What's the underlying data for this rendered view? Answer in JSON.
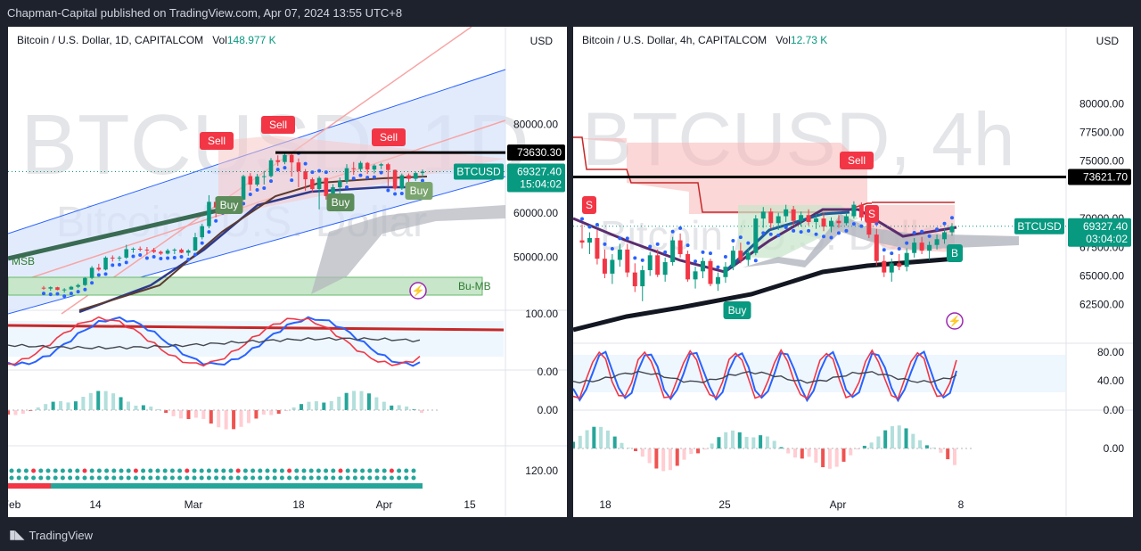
{
  "header": {
    "publisher": "Chapman-Capital published on TradingView.com, Apr 07, 2024 13:55 UTC+8"
  },
  "footer": {
    "brand": "TradingView"
  },
  "colors": {
    "up": "#089981",
    "down": "#f23645",
    "ichimoku_cloud": "#b2b5be",
    "channel_fill": "#d6e2fb",
    "support_fill": "#c8e6c9"
  },
  "chart_data": [
    {
      "type": "candlestick",
      "legend": {
        "symbol": "Bitcoin / U.S. Dollar, 1D, CAPITALCOM",
        "vol_label": "Vol",
        "vol_value": "148.977 K"
      },
      "watermark": "BTCUSD, 1D",
      "watermark_sub": "Bitcoin / U.S. Dollar",
      "currency": "USD",
      "price_ticks": [
        "80000.00",
        "60000.00",
        "50000.00"
      ],
      "price_ticks_values": [
        80000,
        60000,
        50000
      ],
      "ylim": [
        38000,
        94000
      ],
      "resistance": {
        "value": 73630.3,
        "label": "73630.30"
      },
      "last_price": {
        "symbol": "BTCUSD",
        "value": 69327.4,
        "label": "69327.40",
        "countdown": "15:04:02"
      },
      "oscillator_ticks": [
        "100.00",
        "0.00"
      ],
      "macd_ticks": [
        "0.00"
      ],
      "bottom_tick": "120.00",
      "x_ticks": [
        "Feb",
        "14",
        "Mar",
        "18",
        "Apr",
        "15"
      ],
      "annotations": [
        "Sell",
        "Sell",
        "Sell",
        "Buy",
        "Buy",
        "Buy",
        "Bu-MB",
        "MSB"
      ],
      "candles": [
        [
          43100,
          43500,
          42600,
          42900
        ],
        [
          42900,
          43400,
          42400,
          43200
        ],
        [
          43200,
          43300,
          42500,
          42600
        ],
        [
          42600,
          43000,
          42000,
          42700
        ],
        [
          42700,
          43500,
          42600,
          43300
        ],
        [
          43300,
          44000,
          43000,
          43700
        ],
        [
          43700,
          45500,
          43500,
          45300
        ],
        [
          45300,
          48000,
          45000,
          47600
        ],
        [
          47600,
          48500,
          46800,
          47200
        ],
        [
          47200,
          50200,
          47000,
          49900
        ],
        [
          49900,
          50400,
          49000,
          49700
        ],
        [
          49700,
          50300,
          49100,
          49900
        ],
        [
          49900,
          52800,
          49600,
          51800
        ],
        [
          51800,
          52200,
          51000,
          51900
        ],
        [
          51900,
          52400,
          51300,
          51700
        ],
        [
          51700,
          52300,
          50600,
          51600
        ],
        [
          51600,
          52100,
          50900,
          51200
        ],
        [
          51200,
          51500,
          50500,
          50800
        ],
        [
          50800,
          51900,
          50600,
          51500
        ],
        [
          51500,
          52000,
          50700,
          51700
        ],
        [
          51700,
          52000,
          50900,
          51000
        ],
        [
          51000,
          51800,
          50300,
          51500
        ],
        [
          51500,
          55500,
          51400,
          54500
        ],
        [
          54500,
          57500,
          54000,
          57000
        ],
        [
          57000,
          64000,
          56500,
          62500
        ],
        [
          62500,
          63500,
          59000,
          61200
        ],
        [
          61200,
          63000,
          60800,
          62400
        ],
        [
          62400,
          63600,
          61600,
          63100
        ],
        [
          63100,
          63600,
          62600,
          63000
        ],
        [
          63000,
          68600,
          62900,
          68300
        ],
        [
          68300,
          69000,
          65000,
          66400
        ],
        [
          66400,
          68800,
          66000,
          68200
        ],
        [
          68200,
          69500,
          66400,
          68300
        ],
        [
          68300,
          72400,
          68000,
          71900
        ],
        [
          71900,
          73000,
          70600,
          71500
        ],
        [
          71500,
          73600,
          71000,
          73100
        ],
        [
          73100,
          73500,
          68200,
          71400
        ],
        [
          71400,
          72300,
          65800,
          69400
        ],
        [
          69400,
          69900,
          65000,
          67600
        ],
        [
          67600,
          68000,
          64600,
          65400
        ],
        [
          65400,
          68300,
          60800,
          67900
        ],
        [
          67900,
          68000,
          63000,
          63800
        ],
        [
          63800,
          66500,
          62400,
          65800
        ],
        [
          65800,
          68000,
          64000,
          67200
        ],
        [
          67200,
          71000,
          66600,
          70100
        ],
        [
          70100,
          71500,
          68600,
          69900
        ],
        [
          69900,
          71700,
          69300,
          71300
        ],
        [
          71300,
          71500,
          68800,
          69800
        ],
        [
          69800,
          71000,
          68900,
          70700
        ],
        [
          70700,
          71300,
          69900,
          71000
        ],
        [
          71000,
          71300,
          65900,
          69700
        ],
        [
          69700,
          69800,
          65100,
          65500
        ],
        [
          65500,
          68900,
          65200,
          68500
        ],
        [
          68500,
          68900,
          65900,
          67700
        ],
        [
          67700,
          69300,
          67200,
          69000
        ],
        [
          69000,
          69800,
          68100,
          69327
        ]
      ]
    },
    {
      "type": "candlestick",
      "legend": {
        "symbol": "Bitcoin / U.S. Dollar, 4h, CAPITALCOM",
        "vol_label": "Vol",
        "vol_value": "12.73 K"
      },
      "watermark": "BTCUSD, 4h",
      "watermark_sub": "Bitcoin / U.S. Dollar",
      "currency": "USD",
      "price_ticks": [
        "80000.00",
        "77500.00",
        "75000.00",
        "70000.00",
        "67500.00",
        "65000.00",
        "62500.00"
      ],
      "price_ticks_values": [
        80000,
        77500,
        75000,
        70000,
        67500,
        65000,
        62500
      ],
      "ylim": [
        60300,
        83600
      ],
      "resistance": {
        "value": 73621.7,
        "label": "73621.70"
      },
      "last_price": {
        "symbol": "BTCUSD",
        "value": 69327.4,
        "label": "69327.40",
        "countdown": "03:04:02"
      },
      "oscillator_ticks": [
        "80.00",
        "40.00",
        "0.00"
      ],
      "macd_ticks": [
        "0.00"
      ],
      "x_ticks": [
        "18",
        "25",
        "Apr",
        "8"
      ],
      "annotations": [
        "S",
        "S",
        "Sell",
        "Buy",
        "B"
      ],
      "candles": [
        [
          68100,
          69500,
          67400,
          67900
        ],
        [
          67900,
          68800,
          66900,
          68300
        ],
        [
          68300,
          69000,
          66000,
          66500
        ],
        [
          66500,
          67300,
          64800,
          65200
        ],
        [
          65200,
          66900,
          64300,
          66400
        ],
        [
          66400,
          67800,
          65800,
          67300
        ],
        [
          67300,
          67800,
          64900,
          65300
        ],
        [
          65300,
          66100,
          63600,
          64100
        ],
        [
          64100,
          65900,
          62800,
          65500
        ],
        [
          65500,
          67100,
          65000,
          66800
        ],
        [
          66800,
          67300,
          64900,
          65100
        ],
        [
          65100,
          66600,
          64500,
          66200
        ],
        [
          66200,
          68400,
          65900,
          68100
        ],
        [
          68100,
          68700,
          66600,
          66900
        ],
        [
          66900,
          67200,
          64500,
          64700
        ],
        [
          64700,
          65800,
          63900,
          65400
        ],
        [
          65400,
          66600,
          64800,
          66300
        ],
        [
          66300,
          66500,
          64100,
          64300
        ],
        [
          64300,
          65300,
          63700,
          64900
        ],
        [
          64900,
          66200,
          64400,
          65800
        ],
        [
          65800,
          67600,
          65500,
          67200
        ],
        [
          67200,
          67900,
          66100,
          66400
        ],
        [
          66400,
          67400,
          65900,
          67000
        ],
        [
          67000,
          70300,
          66800,
          70000
        ],
        [
          70000,
          71000,
          69200,
          70600
        ],
        [
          70600,
          70900,
          69100,
          69600
        ],
        [
          69600,
          70500,
          69000,
          70200
        ],
        [
          70200,
          71200,
          69700,
          70800
        ],
        [
          70800,
          71100,
          69400,
          69800
        ],
        [
          69800,
          70600,
          69300,
          70300
        ],
        [
          70300,
          70800,
          69400,
          69700
        ],
        [
          69700,
          70400,
          69100,
          70000
        ],
        [
          70000,
          70500,
          68900,
          69300
        ],
        [
          69300,
          70100,
          68800,
          69800
        ],
        [
          69800,
          70300,
          69200,
          69600
        ],
        [
          69600,
          70500,
          69400,
          70200
        ],
        [
          70200,
          71500,
          70000,
          71200
        ],
        [
          71200,
          71400,
          69800,
          70100
        ],
        [
          70100,
          70400,
          68300,
          68600
        ],
        [
          68600,
          69100,
          65900,
          66300
        ],
        [
          66300,
          66800,
          64900,
          65300
        ],
        [
          65300,
          66500,
          64500,
          66100
        ],
        [
          66100,
          66900,
          65500,
          65800
        ],
        [
          65800,
          67400,
          65400,
          67000
        ],
        [
          67000,
          68300,
          66600,
          67900
        ],
        [
          67900,
          68400,
          66900,
          67200
        ],
        [
          67200,
          68000,
          66400,
          67700
        ],
        [
          67700,
          68600,
          67300,
          68200
        ],
        [
          68200,
          69100,
          67800,
          68800
        ],
        [
          68800,
          69600,
          68500,
          69327
        ]
      ]
    }
  ]
}
